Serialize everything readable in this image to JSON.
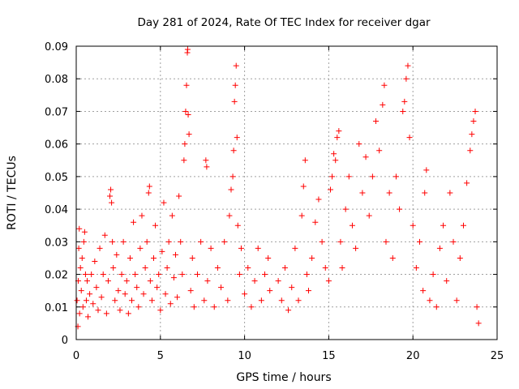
{
  "chart_data": {
    "type": "scatter",
    "title": "Day 281 of 2024, Rate Of TEC Index for receiver dgar",
    "xlabel": "GPS time / hours",
    "ylabel": "ROTI / TECUs",
    "xlim": [
      0,
      25
    ],
    "ylim": [
      0,
      0.09
    ],
    "x_ticks": [
      0,
      5,
      10,
      15,
      20,
      25
    ],
    "y_ticks": [
      0,
      0.01,
      0.02,
      0.03,
      0.04,
      0.05,
      0.06,
      0.07,
      0.08,
      0.09
    ],
    "x_tick_labels": [
      "0",
      "5",
      "10",
      "15",
      "20",
      "25"
    ],
    "y_tick_labels": [
      "0",
      "0.01",
      "0.02",
      "0.03",
      "0.04",
      "0.05",
      "0.06",
      "0.07",
      "0.08",
      "0.09"
    ],
    "grid": true,
    "marker": "+",
    "color": "#ff0000",
    "series": [
      {
        "points": [
          [
            0.05,
            0.012
          ],
          [
            0.1,
            0.004
          ],
          [
            0.12,
            0.018
          ],
          [
            0.15,
            0.028
          ],
          [
            0.18,
            0.034
          ],
          [
            0.2,
            0.008
          ],
          [
            0.25,
            0.022
          ],
          [
            0.3,
            0.015
          ],
          [
            0.35,
            0.025
          ],
          [
            0.4,
            0.01
          ],
          [
            0.45,
            0.03
          ],
          [
            0.5,
            0.033
          ],
          [
            0.55,
            0.02
          ],
          [
            0.6,
            0.012
          ],
          [
            0.65,
            0.018
          ],
          [
            0.7,
            0.007
          ],
          [
            0.8,
            0.014
          ],
          [
            0.9,
            0.02
          ],
          [
            1.0,
            0.011
          ],
          [
            1.1,
            0.024
          ],
          [
            1.2,
            0.016
          ],
          [
            1.3,
            0.009
          ],
          [
            1.4,
            0.028
          ],
          [
            1.5,
            0.013
          ],
          [
            1.6,
            0.02
          ],
          [
            1.7,
            0.032
          ],
          [
            1.8,
            0.008
          ],
          [
            1.9,
            0.018
          ],
          [
            2.0,
            0.044
          ],
          [
            2.05,
            0.046
          ],
          [
            2.1,
            0.042
          ],
          [
            2.15,
            0.03
          ],
          [
            2.2,
            0.022
          ],
          [
            2.3,
            0.012
          ],
          [
            2.4,
            0.026
          ],
          [
            2.5,
            0.015
          ],
          [
            2.6,
            0.009
          ],
          [
            2.7,
            0.02
          ],
          [
            2.8,
            0.03
          ],
          [
            2.9,
            0.014
          ],
          [
            3.0,
            0.018
          ],
          [
            3.1,
            0.008
          ],
          [
            3.2,
            0.025
          ],
          [
            3.3,
            0.012
          ],
          [
            3.4,
            0.036
          ],
          [
            3.5,
            0.02
          ],
          [
            3.6,
            0.016
          ],
          [
            3.7,
            0.01
          ],
          [
            3.8,
            0.028
          ],
          [
            3.9,
            0.038
          ],
          [
            4.0,
            0.014
          ],
          [
            4.1,
            0.022
          ],
          [
            4.2,
            0.03
          ],
          [
            4.3,
            0.045
          ],
          [
            4.35,
            0.047
          ],
          [
            4.4,
            0.018
          ],
          [
            4.5,
            0.012
          ],
          [
            4.6,
            0.025
          ],
          [
            4.7,
            0.035
          ],
          [
            4.8,
            0.016
          ],
          [
            4.9,
            0.02
          ],
          [
            5.0,
            0.009
          ],
          [
            5.1,
            0.027
          ],
          [
            5.2,
            0.042
          ],
          [
            5.3,
            0.014
          ],
          [
            5.4,
            0.022
          ],
          [
            5.5,
            0.03
          ],
          [
            5.6,
            0.011
          ],
          [
            5.7,
            0.038
          ],
          [
            5.8,
            0.019
          ],
          [
            5.9,
            0.026
          ],
          [
            6.0,
            0.013
          ],
          [
            6.1,
            0.044
          ],
          [
            6.2,
            0.03
          ],
          [
            6.3,
            0.02
          ],
          [
            6.4,
            0.055
          ],
          [
            6.45,
            0.06
          ],
          [
            6.5,
            0.07
          ],
          [
            6.55,
            0.078
          ],
          [
            6.6,
            0.088
          ],
          [
            6.62,
            0.089
          ],
          [
            6.65,
            0.069
          ],
          [
            6.7,
            0.063
          ],
          [
            6.8,
            0.015
          ],
          [
            6.9,
            0.025
          ],
          [
            7.0,
            0.01
          ],
          [
            7.2,
            0.02
          ],
          [
            7.4,
            0.03
          ],
          [
            7.6,
            0.012
          ],
          [
            7.7,
            0.055
          ],
          [
            7.75,
            0.053
          ],
          [
            7.8,
            0.018
          ],
          [
            8.0,
            0.028
          ],
          [
            8.2,
            0.01
          ],
          [
            8.4,
            0.022
          ],
          [
            8.6,
            0.016
          ],
          [
            8.8,
            0.03
          ],
          [
            9.0,
            0.012
          ],
          [
            9.1,
            0.038
          ],
          [
            9.2,
            0.046
          ],
          [
            9.3,
            0.05
          ],
          [
            9.35,
            0.058
          ],
          [
            9.4,
            0.073
          ],
          [
            9.45,
            0.078
          ],
          [
            9.5,
            0.084
          ],
          [
            9.55,
            0.062
          ],
          [
            9.6,
            0.035
          ],
          [
            9.7,
            0.02
          ],
          [
            9.8,
            0.028
          ],
          [
            10.0,
            0.014
          ],
          [
            10.2,
            0.022
          ],
          [
            10.4,
            0.01
          ],
          [
            10.6,
            0.018
          ],
          [
            10.8,
            0.028
          ],
          [
            11.0,
            0.012
          ],
          [
            11.2,
            0.02
          ],
          [
            11.4,
            0.025
          ],
          [
            11.5,
            0.015
          ],
          [
            12.0,
            0.018
          ],
          [
            12.2,
            0.012
          ],
          [
            12.4,
            0.022
          ],
          [
            12.6,
            0.009
          ],
          [
            12.8,
            0.016
          ],
          [
            13.0,
            0.028
          ],
          [
            13.2,
            0.012
          ],
          [
            13.4,
            0.038
          ],
          [
            13.5,
            0.047
          ],
          [
            13.6,
            0.055
          ],
          [
            13.7,
            0.02
          ],
          [
            13.8,
            0.015
          ],
          [
            14.0,
            0.025
          ],
          [
            14.2,
            0.036
          ],
          [
            14.4,
            0.043
          ],
          [
            14.6,
            0.03
          ],
          [
            14.8,
            0.022
          ],
          [
            15.0,
            0.018
          ],
          [
            15.1,
            0.046
          ],
          [
            15.2,
            0.05
          ],
          [
            15.3,
            0.057
          ],
          [
            15.4,
            0.055
          ],
          [
            15.5,
            0.062
          ],
          [
            15.6,
            0.064
          ],
          [
            15.7,
            0.03
          ],
          [
            15.8,
            0.022
          ],
          [
            16.0,
            0.04
          ],
          [
            16.2,
            0.05
          ],
          [
            16.4,
            0.035
          ],
          [
            16.6,
            0.028
          ],
          [
            16.8,
            0.06
          ],
          [
            17.0,
            0.045
          ],
          [
            17.2,
            0.056
          ],
          [
            17.4,
            0.038
          ],
          [
            17.6,
            0.05
          ],
          [
            17.8,
            0.067
          ],
          [
            18.0,
            0.058
          ],
          [
            18.2,
            0.072
          ],
          [
            18.3,
            0.078
          ],
          [
            18.4,
            0.03
          ],
          [
            18.6,
            0.045
          ],
          [
            18.8,
            0.025
          ],
          [
            19.0,
            0.05
          ],
          [
            19.2,
            0.04
          ],
          [
            19.4,
            0.07
          ],
          [
            19.5,
            0.073
          ],
          [
            19.6,
            0.08
          ],
          [
            19.7,
            0.084
          ],
          [
            19.8,
            0.062
          ],
          [
            20.0,
            0.035
          ],
          [
            20.2,
            0.022
          ],
          [
            20.4,
            0.03
          ],
          [
            20.6,
            0.015
          ],
          [
            20.7,
            0.045
          ],
          [
            20.8,
            0.052
          ],
          [
            21.0,
            0.012
          ],
          [
            21.2,
            0.02
          ],
          [
            21.4,
            0.01
          ],
          [
            21.6,
            0.028
          ],
          [
            21.8,
            0.035
          ],
          [
            22.0,
            0.018
          ],
          [
            22.2,
            0.045
          ],
          [
            22.4,
            0.03
          ],
          [
            22.6,
            0.012
          ],
          [
            22.8,
            0.025
          ],
          [
            23.0,
            0.035
          ],
          [
            23.2,
            0.048
          ],
          [
            23.4,
            0.058
          ],
          [
            23.5,
            0.063
          ],
          [
            23.6,
            0.067
          ],
          [
            23.7,
            0.07
          ],
          [
            23.8,
            0.01
          ],
          [
            23.9,
            0.005
          ]
        ]
      }
    ]
  }
}
